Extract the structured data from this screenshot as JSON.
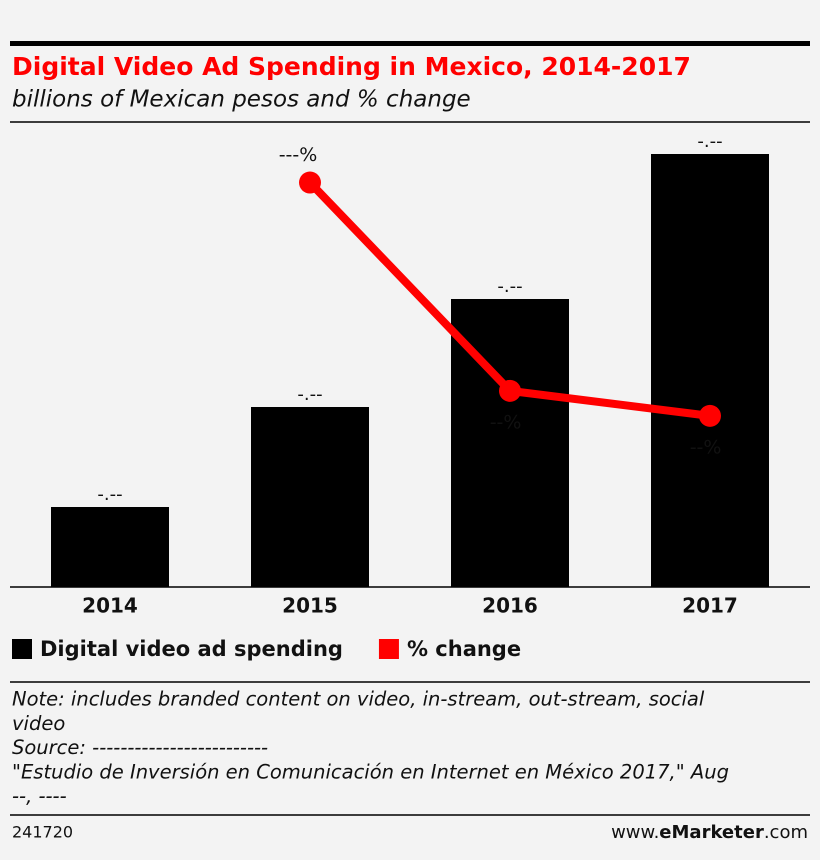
{
  "chart_data": {
    "type": "combo",
    "title": "Digital Video Ad Spending in Mexico, 2014-2017",
    "subtitle": "billions of Mexican pesos and % change",
    "categories": [
      "2014",
      "2015",
      "2016",
      "2017"
    ],
    "ylim": [
      0,
      4.65
    ],
    "y2lim": [
      -10.6,
      156.8
    ],
    "legend": "bottom-left",
    "series": [
      {
        "name": "Digital video ad spending",
        "type": "bar",
        "color": "#000000",
        "values": [
          0.8,
          1.8,
          2.88,
          4.33
        ],
        "value_labels": [
          "-.--",
          "-.--",
          "-.--",
          "-.--"
        ]
      },
      {
        "name": "% change",
        "type": "line",
        "axis": "y2",
        "color": "#ff0000",
        "values": [
          null,
          135,
          60,
          51
        ],
        "value_labels": [
          null,
          "---%",
          "--%",
          "--%"
        ]
      }
    ],
    "notes": [
      "Note: includes branded content on video, in-stream, out-stream, social",
      "video",
      "Source: -------------------------",
      "\"Estudio de Inversión en Comunicación en Internet en México 2017,\" Aug",
      "--, ----"
    ],
    "footer": {
      "id": "241720",
      "site_prefix": "www.",
      "site_brand": "eMarketer",
      "site_suffix": ".com"
    }
  }
}
